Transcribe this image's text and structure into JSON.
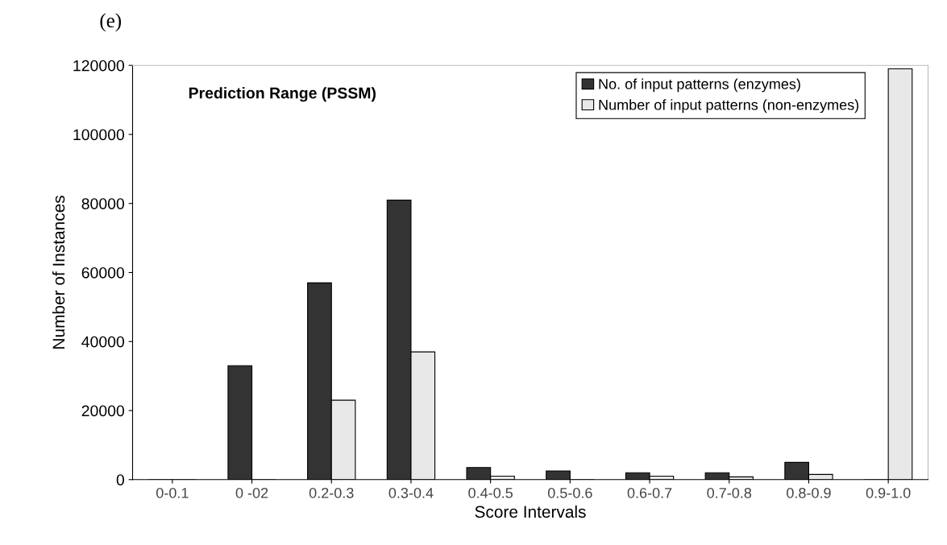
{
  "chart_data": {
    "type": "bar",
    "title": "Prediction Range (PSSM)",
    "xlabel": "Score Intervals",
    "ylabel": "Number of Instances",
    "annotations": [
      "(e)"
    ],
    "categories": [
      "0-0.1",
      "0 -02",
      "0.2-0.3",
      "0.3-0.4",
      "0.4-0.5",
      "0.5-0.6",
      "0.6-0.7",
      "0.7-0.8",
      "0.8-0.9",
      "0.9-1.0"
    ],
    "series": [
      {
        "name": "No. of input patterns (enzymes)",
        "color": "#333333",
        "values": [
          0,
          33000,
          57000,
          81000,
          3500,
          2500,
          2000,
          2000,
          5000,
          0
        ]
      },
      {
        "name": "Number of input patterns (non-enzymes)",
        "color": "#e8e8e8",
        "values": [
          0,
          0,
          23000,
          37000,
          1000,
          0,
          1000,
          800,
          1500,
          119000
        ]
      }
    ],
    "ylim": [
      0,
      120000
    ],
    "yticks": [
      0,
      20000,
      40000,
      60000,
      80000,
      100000,
      120000
    ],
    "grid": false,
    "legend": "top right"
  }
}
